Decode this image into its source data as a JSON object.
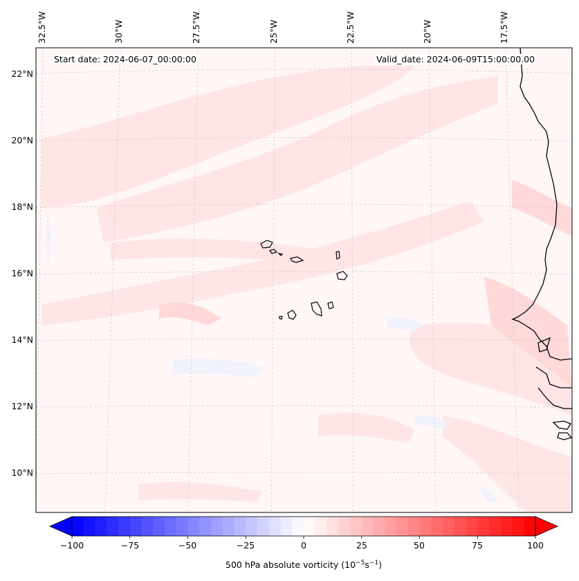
{
  "map": {
    "lon_labels": [
      "32.5°W",
      "30°W",
      "27.5°W",
      "25°W",
      "22.5°W",
      "20°W",
      "17.5°W"
    ],
    "lat_labels": [
      "22°N",
      "20°N",
      "18°N",
      "16°N",
      "14°N",
      "12°N",
      "10°N"
    ],
    "start_date": "Start date: 2024-06-07_00:00:00",
    "valid_date": "Valid_date: 2024-06-09T15:00:00.00",
    "gridlines": true,
    "field": "500 hPa absolute vorticity",
    "features": [
      "coastline-west-africa",
      "cape-verde-islands"
    ]
  },
  "colorbar": {
    "ticks": [
      "−100",
      "−75",
      "−50",
      "−25",
      "0",
      "25",
      "50",
      "75",
      "100"
    ],
    "label": "500 hPa absolute vorticity (10",
    "label_exp1": "−5",
    "label_mid": "s",
    "label_exp2": "−1",
    "label_end": ")",
    "min": -100,
    "max": 100,
    "low_color": "#0000ff",
    "mid_color": "#ffffff",
    "high_color": "#ff0000"
  }
}
